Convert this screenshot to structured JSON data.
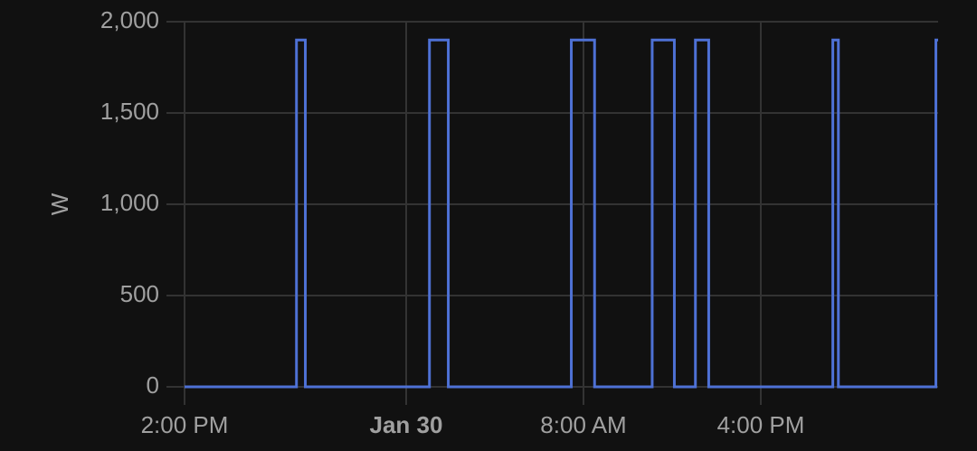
{
  "chart_data": {
    "type": "line",
    "y_label": "W",
    "x": [
      0,
      5.05,
      5.05,
      5.45,
      5.45,
      11.05,
      11.05,
      11.9,
      11.9,
      17.45,
      17.45,
      18.5,
      18.5,
      21.1,
      21.1,
      22.1,
      22.1,
      23.05,
      23.05,
      23.65,
      23.65,
      29.25,
      29.25,
      29.5,
      29.5,
      33.9,
      33.9,
      34
    ],
    "series": [
      {
        "color": "#4e71d5",
        "values": [
          0,
          0,
          1900,
          1900,
          0,
          0,
          1900,
          1900,
          0,
          0,
          1900,
          1900,
          0,
          0,
          1900,
          1900,
          0,
          0,
          1900,
          1900,
          0,
          0,
          1900,
          1900,
          0,
          0,
          1900,
          1900
        ]
      }
    ],
    "xlim": [
      0,
      34
    ],
    "xticks": [
      {
        "value": 0,
        "label": "2:00 PM"
      },
      {
        "value": 10,
        "label": "Jan 30"
      },
      {
        "value": 18,
        "label": "8:00 AM"
      },
      {
        "value": 26,
        "label": "4:00 PM"
      }
    ],
    "ylim": [
      0,
      2000
    ],
    "yticks": [
      0,
      {
        "value": 500,
        "label": "500"
      },
      {
        "value": 1000,
        "label": "1,000"
      },
      {
        "value": 1500,
        "label": "1,500"
      },
      {
        "value": 2000,
        "label": "2,000"
      }
    ],
    "grid": true
  }
}
